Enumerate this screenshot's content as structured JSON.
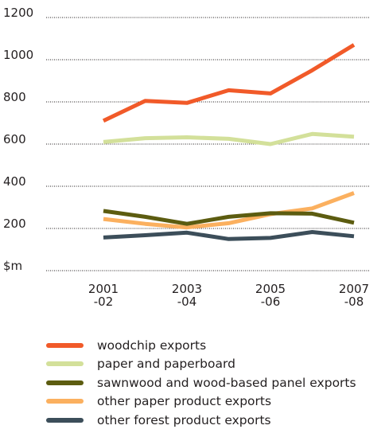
{
  "chart_data": {
    "type": "line",
    "title": "",
    "xlabel": "",
    "ylabel": "",
    "y_ticks": [
      "$m",
      "200",
      "400",
      "600",
      "800",
      "1000",
      "1200"
    ],
    "ylim": [
      0,
      1200
    ],
    "x_ticks": [
      {
        "x": 0,
        "line1": "2001",
        "line2": "-02"
      },
      {
        "x": 2,
        "line1": "2003",
        "line2": "-04"
      },
      {
        "x": 4,
        "line1": "2005",
        "line2": "-06"
      },
      {
        "x": 6,
        "line1": "2007",
        "line2": "-08"
      }
    ],
    "x": [
      0,
      1,
      2,
      3,
      4,
      5,
      6
    ],
    "grid": "horizontal dotted",
    "legend_position": "bottom",
    "series": [
      {
        "name": "woodchip exports",
        "color": "#f15a29",
        "values": [
          710,
          805,
          795,
          855,
          840,
          950,
          1070
        ]
      },
      {
        "name": "paper and paperboard",
        "color": "#d3e09a",
        "values": [
          610,
          628,
          632,
          625,
          600,
          648,
          635
        ]
      },
      {
        "name": "sawnwood and wood-based panel exports",
        "color": "#5c5c10",
        "values": [
          283,
          255,
          222,
          255,
          272,
          270,
          227
        ]
      },
      {
        "name": "other paper product exports",
        "color": "#fbb05f",
        "values": [
          245,
          222,
          205,
          225,
          268,
          295,
          368
        ]
      },
      {
        "name": "other forest product exports",
        "color": "#3c4e5a",
        "values": [
          157,
          168,
          180,
          150,
          155,
          183,
          163
        ]
      }
    ]
  }
}
